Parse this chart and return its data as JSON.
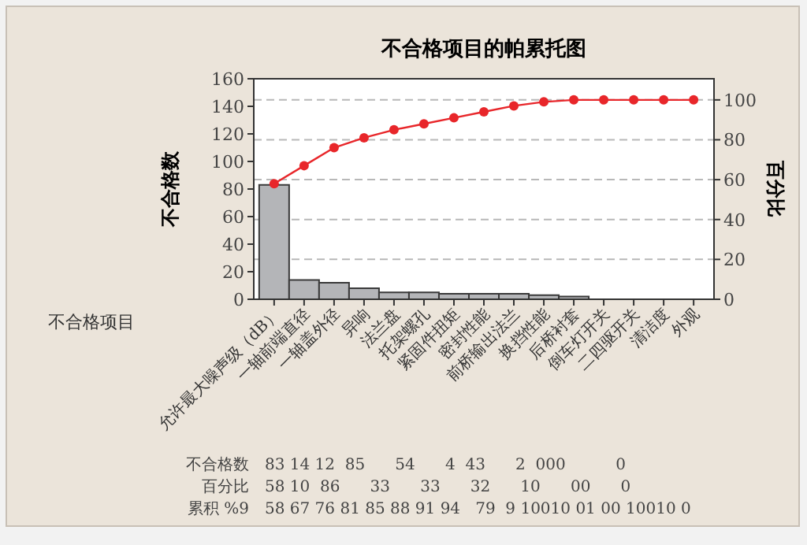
{
  "chart_data": {
    "type": "bar",
    "title": "不合格项目的帕累托图",
    "xlabel": "不合格项目",
    "ylabel": "不合格数",
    "y2label": "百分比",
    "categories": [
      "允许最大噪声级（dB）",
      "一轴前端直径",
      "一轴盖外径",
      "异响",
      "法兰盘",
      "托架螺孔",
      "紧固件扭矩",
      "密封性能",
      "前桥输出法兰",
      "换挡性能",
      "后桥衬套",
      "倒车灯开关",
      "二四驱开关",
      "清洁度",
      "外观"
    ],
    "series": [
      {
        "color": "#b4b5b8",
        "values": [
          83,
          14,
          12,
          8,
          5,
          5,
          4,
          4,
          4,
          3,
          2,
          0,
          0,
          0,
          0
        ]
      },
      {
        "type": "line",
        "axis": "y2",
        "color": "#e8262a",
        "marker": "circle",
        "values": [
          58,
          67,
          76,
          81,
          85,
          88,
          91,
          94,
          97,
          99,
          100,
          100,
          100,
          100,
          100
        ]
      }
    ],
    "ylim": [
      0,
      160
    ],
    "yticks": [
      0,
      20,
      40,
      60,
      80,
      100,
      120,
      140,
      160
    ],
    "y2lim": [
      0,
      110.6
    ],
    "y2ticks": [
      0,
      20,
      40,
      60,
      80,
      100
    ],
    "grid": "y2",
    "annotations": [
      "不合格数",
      "83 14 12  85      54      4  43      2  000          0",
      "百分比",
      "58 10  86      33      33      32      10      00      0",
      "累积 %9",
      "58 67 76 81 85 88 91 94   79  9 10010 01 00 10010 0"
    ]
  }
}
